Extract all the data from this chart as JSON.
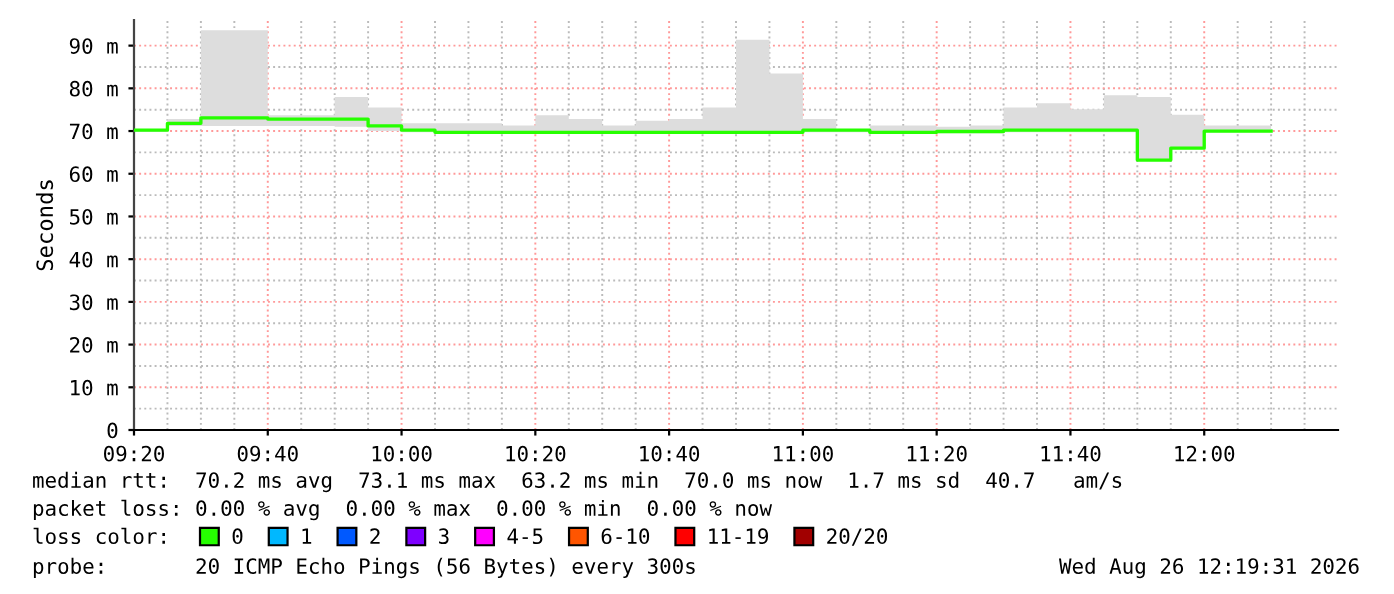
{
  "chart_data": {
    "type": "step",
    "ylabel": "Seconds",
    "x": [
      "2026-08-26T09:20",
      "2026-08-26T09:25",
      "2026-08-26T09:30",
      "2026-08-26T09:35",
      "2026-08-26T09:40",
      "2026-08-26T09:45",
      "2026-08-26T09:50",
      "2026-08-26T09:55",
      "2026-08-26T10:00",
      "2026-08-26T10:05",
      "2026-08-26T10:10",
      "2026-08-26T10:15",
      "2026-08-26T10:20",
      "2026-08-26T10:25",
      "2026-08-26T10:30",
      "2026-08-26T10:35",
      "2026-08-26T10:40",
      "2026-08-26T10:45",
      "2026-08-26T10:50",
      "2026-08-26T10:55",
      "2026-08-26T11:00",
      "2026-08-26T11:05",
      "2026-08-26T11:10",
      "2026-08-26T11:15",
      "2026-08-26T11:20",
      "2026-08-26T11:25",
      "2026-08-26T11:30",
      "2026-08-26T11:35",
      "2026-08-26T11:40",
      "2026-08-26T11:45",
      "2026-08-26T11:50",
      "2026-08-26T11:55",
      "2026-08-26T12:00",
      "2026-08-26T12:05",
      "2026-08-26T12:10"
    ],
    "series": [
      {
        "name": "0",
        "color": "#26ff00",
        "values": [
          70.2,
          71.8,
          73.1,
          73.1,
          72.8,
          72.8,
          72.8,
          71.2,
          70.2,
          69.7,
          69.7,
          69.7,
          69.7,
          69.7,
          69.7,
          69.7,
          69.7,
          69.7,
          69.7,
          69.7,
          70.2,
          70.2,
          69.7,
          69.7,
          69.9,
          69.9,
          70.2,
          70.2,
          70.2,
          70.2,
          63.2,
          66.0,
          70.0,
          70.0,
          70.0
        ],
        "lower": [
          69.8,
          71.2,
          71.2,
          71.2,
          71.2,
          71.2,
          71.0,
          70.0,
          69.7,
          69.4,
          69.4,
          69.4,
          69.4,
          69.4,
          69.4,
          69.4,
          69.4,
          69.4,
          69.4,
          69.4,
          69.7,
          69.7,
          69.4,
          69.4,
          69.5,
          69.5,
          69.7,
          69.7,
          69.7,
          69.7,
          63.0,
          65.8,
          69.7,
          69.7,
          69.7
        ],
        "upper": [
          70.5,
          72.8,
          93.6,
          93.6,
          73.7,
          73.7,
          78.0,
          75.5,
          71.8,
          71.8,
          71.8,
          71.3,
          73.7,
          72.8,
          71.3,
          72.4,
          72.8,
          75.5,
          91.4,
          83.5,
          72.8,
          70.5,
          71.3,
          71.3,
          71.0,
          71.3,
          75.5,
          76.5,
          75.1,
          78.4,
          78.0,
          73.8,
          71.3,
          71.3,
          71.3
        ]
      },
      {
        "name": "1",
        "color": "#00b8ff",
        "values": [
          null,
          null,
          null,
          null,
          null,
          null,
          null,
          null,
          null,
          null,
          null,
          null,
          null,
          null,
          null,
          null,
          null,
          null,
          null,
          null,
          null,
          null,
          null,
          null,
          null,
          null,
          null,
          null,
          null,
          null,
          null,
          null,
          null,
          null,
          null
        ]
      },
      {
        "name": "2",
        "color": "#0059ff",
        "values": [
          null,
          null,
          null,
          null,
          null,
          null,
          null,
          null,
          null,
          null,
          null,
          null,
          null,
          null,
          null,
          null,
          null,
          null,
          null,
          null,
          null,
          null,
          null,
          null,
          null,
          null,
          null,
          null,
          null,
          null,
          null,
          null,
          null,
          null,
          null
        ]
      },
      {
        "name": "3",
        "color": "#7e00ff",
        "values": [
          null,
          null,
          null,
          null,
          null,
          null,
          null,
          null,
          null,
          null,
          null,
          null,
          null,
          null,
          null,
          null,
          null,
          null,
          null,
          null,
          null,
          null,
          null,
          null,
          null,
          null,
          null,
          null,
          null,
          null,
          null,
          null,
          null,
          null,
          null
        ]
      },
      {
        "name": "4-5",
        "color": "#ff00ff",
        "values": [
          null,
          null,
          null,
          null,
          null,
          null,
          null,
          null,
          null,
          null,
          null,
          null,
          null,
          null,
          null,
          null,
          null,
          null,
          null,
          null,
          null,
          null,
          null,
          null,
          null,
          null,
          null,
          null,
          null,
          null,
          null,
          null,
          null,
          null,
          null
        ]
      },
      {
        "name": "6-10",
        "color": "#ff5500",
        "values": [
          null,
          null,
          null,
          null,
          null,
          null,
          null,
          null,
          null,
          null,
          null,
          null,
          null,
          null,
          null,
          null,
          null,
          null,
          null,
          null,
          null,
          null,
          null,
          null,
          null,
          null,
          null,
          null,
          null,
          null,
          null,
          null,
          null,
          null,
          null
        ]
      },
      {
        "name": "11-19",
        "color": "#ff0000",
        "values": [
          null,
          null,
          null,
          null,
          null,
          null,
          null,
          null,
          null,
          null,
          null,
          null,
          null,
          null,
          null,
          null,
          null,
          null,
          null,
          null,
          null,
          null,
          null,
          null,
          null,
          null,
          null,
          null,
          null,
          null,
          null,
          null,
          null,
          null,
          null
        ]
      },
      {
        "name": "20/20",
        "color": "#a10000",
        "values": [
          null,
          null,
          null,
          null,
          null,
          null,
          null,
          null,
          null,
          null,
          null,
          null,
          null,
          null,
          null,
          null,
          null,
          null,
          null,
          null,
          null,
          null,
          null,
          null,
          null,
          null,
          null,
          null,
          null,
          null,
          null,
          null,
          null,
          null,
          null
        ]
      }
    ],
    "xlim": [
      "2026-08-26T09:20",
      "2026-08-26T12:20"
    ],
    "xticks": [
      {
        "value": "2026-08-26T09:20",
        "label": "09:20"
      },
      {
        "value": "2026-08-26T09:40",
        "label": "09:40"
      },
      {
        "value": "2026-08-26T10:00",
        "label": "10:00"
      },
      {
        "value": "2026-08-26T10:20",
        "label": "10:20"
      },
      {
        "value": "2026-08-26T10:40",
        "label": "10:40"
      },
      {
        "value": "2026-08-26T11:00",
        "label": "11:00"
      },
      {
        "value": "2026-08-26T11:20",
        "label": "11:20"
      },
      {
        "value": "2026-08-26T11:40",
        "label": "11:40"
      },
      {
        "value": "2026-08-26T12:00",
        "label": "12:00"
      }
    ],
    "ylim": [
      0,
      96
    ],
    "yticks": [
      0,
      {
        "value": 10,
        "label": "10 m"
      },
      {
        "value": 20,
        "label": "20 m"
      },
      {
        "value": 30,
        "label": "30 m"
      },
      {
        "value": 40,
        "label": "40 m"
      },
      {
        "value": 50,
        "label": "50 m"
      },
      {
        "value": 60,
        "label": "60 m"
      },
      {
        "value": 70,
        "label": "70 m"
      },
      {
        "value": 80,
        "label": "80 m"
      },
      {
        "value": 90,
        "label": "90 m"
      }
    ],
    "grid": true,
    "legend": "bottom",
    "legend_title": "loss color:",
    "annotations": [
      "median rtt:  70.2 ms avg  73.1 ms max  63.2 ms min  70.0 ms now  1.7 ms sd  40.7   am/s",
      "packet loss: 0.00 % avg  0.00 % max  0.00 % min  0.00 % now",
      "probe:       20 ICMP Echo Pings (56 Bytes) every 300s",
      "Wed Aug 26 12:19:31 2026"
    ]
  }
}
